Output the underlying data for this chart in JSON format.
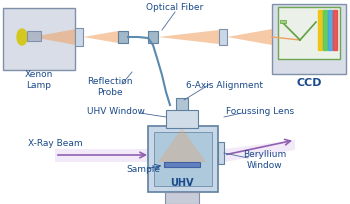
{
  "bg_color": "#ffffff",
  "text_color": "#1a4a8a",
  "fiber_color": "#5a8ab0",
  "beam_color": "#f0a060",
  "xray_color": "#9060b0",
  "uhv_fill": "#c8d8e8",
  "lamp_box_color": "#d8dde8",
  "ccd_box_color": "#d8dde8",
  "spec_colors": [
    "#f0c000",
    "#50c850",
    "#40a0e0",
    "#e84040"
  ],
  "labels": {
    "optical_fiber": "Optical Fiber",
    "xenon_lamp": "Xenon\nLamp",
    "ccd": "CCD",
    "reflection_probe": "Reflection\nProbe",
    "axis_alignment": "6-Axis Alignment",
    "uhv_window": "UHV Window",
    "focussing_lens": "Focussing Lens",
    "xray_beam": "X-Ray Beam",
    "sample": "Sample",
    "uhv": "UHV",
    "beryllium_window": "Beryllium\nWindow"
  }
}
